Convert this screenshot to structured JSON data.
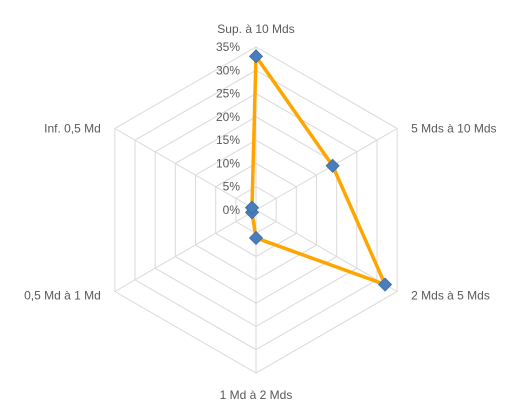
{
  "chart_data": {
    "type": "radar",
    "categories": [
      "Sup. à 10 Mds",
      "5 Mds à 10 Mds",
      "2 Mds à 5 Mds",
      "1 Md à 2 Mds",
      "0,5 Md à 1 Md",
      "Inf. 0,5 Md"
    ],
    "series": [
      {
        "values": [
          33,
          19,
          32,
          6,
          1,
          1
        ],
        "line_color": "#FFA500",
        "marker_color": "#4A7EBB",
        "marker": "diamond"
      }
    ],
    "rlim": [
      0,
      35
    ],
    "tick_values": [
      0,
      5,
      10,
      15,
      20,
      25,
      30,
      35
    ],
    "tick_labels": [
      "0%",
      "5%",
      "10%",
      "15%",
      "20%",
      "25%",
      "30%",
      "35%"
    ],
    "grid": true,
    "legend": false
  }
}
